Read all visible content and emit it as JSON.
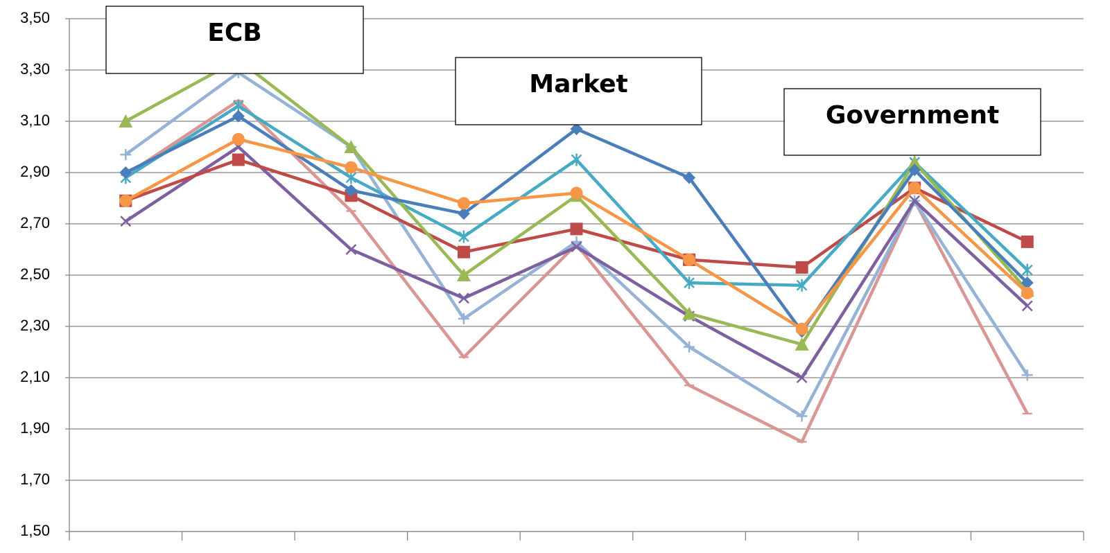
{
  "chart_data": {
    "type": "line",
    "categories": [
      null,
      null,
      null,
      null,
      null,
      null,
      null,
      null,
      null
    ],
    "ylim": [
      1.5,
      3.5
    ],
    "yticks": [
      {
        "value": 1.5,
        "label": "1,50"
      },
      {
        "value": 1.7,
        "label": "1,70"
      },
      {
        "value": 1.9,
        "label": "1,90"
      },
      {
        "value": 2.1,
        "label": "2,10"
      },
      {
        "value": 2.3,
        "label": "2,30"
      },
      {
        "value": 2.5,
        "label": "2,50"
      },
      {
        "value": 2.7,
        "label": "2,70"
      },
      {
        "value": 2.9,
        "label": "2,90"
      },
      {
        "value": 3.1,
        "label": "3,10"
      },
      {
        "value": 3.3,
        "label": "3,30"
      },
      {
        "value": 3.5,
        "label": "3,50"
      }
    ],
    "grid": true,
    "annotations": [
      {
        "text": "ECB"
      },
      {
        "text": "Market"
      },
      {
        "text": "Government"
      }
    ],
    "series": [
      {
        "color": "#d99694",
        "marker": "dash",
        "values": [
          2.89,
          3.18,
          2.75,
          2.18,
          2.62,
          2.07,
          1.85,
          2.79,
          1.96
        ]
      },
      {
        "color": "#95b3d7",
        "marker": "plus",
        "values": [
          2.97,
          3.29,
          3.0,
          2.33,
          2.63,
          2.22,
          1.95,
          2.79,
          2.11
        ]
      },
      {
        "color": "#7d60a0",
        "marker": "x",
        "values": [
          2.71,
          3.0,
          2.6,
          2.41,
          2.61,
          2.34,
          2.1,
          2.79,
          2.38
        ]
      },
      {
        "color": "#be4b48",
        "marker": "square",
        "values": [
          2.79,
          2.95,
          2.81,
          2.59,
          2.68,
          2.56,
          2.53,
          2.84,
          2.63
        ]
      },
      {
        "color": "#46aac5",
        "marker": "star",
        "values": [
          2.88,
          3.16,
          2.88,
          2.65,
          2.95,
          2.47,
          2.46,
          2.94,
          2.52
        ]
      },
      {
        "color": "#98b954",
        "marker": "triangle",
        "values": [
          3.1,
          3.34,
          3.0,
          2.5,
          2.81,
          2.35,
          2.23,
          2.94,
          2.44
        ]
      },
      {
        "color": "#4a7ebb",
        "marker": "diamond",
        "values": [
          2.9,
          3.12,
          2.83,
          2.74,
          3.07,
          2.88,
          2.28,
          2.91,
          2.47
        ]
      },
      {
        "color": "#f79646",
        "marker": "circle",
        "values": [
          2.79,
          3.03,
          2.92,
          2.78,
          2.82,
          2.56,
          2.29,
          2.84,
          2.43
        ]
      }
    ]
  }
}
